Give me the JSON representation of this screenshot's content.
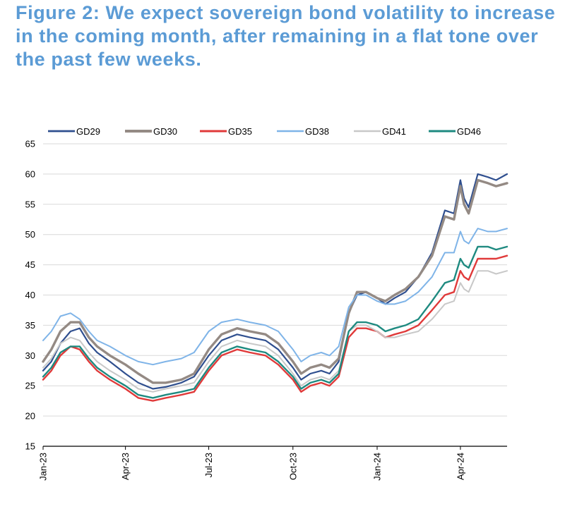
{
  "title": "Figure 2: We expect sovereign bond volatility to increase in the coming month, after remaining in a flat tone over the past few weeks.",
  "chart_data": {
    "type": "line",
    "title": "Figure 2: We expect sovereign bond volatility to increase in the coming month, after remaining in a flat tone over the past few weeks.",
    "x_range": [
      "2023-01-01",
      "2024-05-22"
    ],
    "y_range": [
      15,
      65
    ],
    "y_ticks": [
      15,
      20,
      25,
      30,
      35,
      40,
      45,
      50,
      55,
      60,
      65
    ],
    "x_ticks": [
      {
        "label": "Jan-23",
        "date": "2023-01-01"
      },
      {
        "label": "Apr-23",
        "date": "2023-04-01"
      },
      {
        "label": "Jul-23",
        "date": "2023-07-01"
      },
      {
        "label": "Oct-23",
        "date": "2023-10-01"
      },
      {
        "label": "Jan-24",
        "date": "2024-01-01"
      },
      {
        "label": "Apr-24",
        "date": "2024-04-01"
      }
    ],
    "grid": "horizontal",
    "legend_position": "top",
    "series": [
      {
        "name": "GD29",
        "color": "#2f4f8f",
        "width": 2.2,
        "points": [
          [
            "2023-01-01",
            27.5
          ],
          [
            "2023-01-10",
            29
          ],
          [
            "2023-01-20",
            32
          ],
          [
            "2023-01-31",
            34
          ],
          [
            "2023-02-10",
            34.5
          ],
          [
            "2023-02-20",
            32
          ],
          [
            "2023-03-01",
            30.5
          ],
          [
            "2023-03-15",
            29
          ],
          [
            "2023-04-01",
            27
          ],
          [
            "2023-04-15",
            25.5
          ],
          [
            "2023-05-01",
            24.5
          ],
          [
            "2023-05-15",
            24.8
          ],
          [
            "2023-06-01",
            25.5
          ],
          [
            "2023-06-15",
            26.5
          ],
          [
            "2023-07-01",
            30
          ],
          [
            "2023-07-15",
            32.5
          ],
          [
            "2023-08-01",
            33.5
          ],
          [
            "2023-08-15",
            33
          ],
          [
            "2023-09-01",
            32.5
          ],
          [
            "2023-09-15",
            31
          ],
          [
            "2023-10-01",
            28
          ],
          [
            "2023-10-10",
            26
          ],
          [
            "2023-10-20",
            27
          ],
          [
            "2023-11-01",
            27.5
          ],
          [
            "2023-11-10",
            27
          ],
          [
            "2023-11-20",
            29
          ],
          [
            "2023-12-01",
            37
          ],
          [
            "2023-12-10",
            40
          ],
          [
            "2023-12-20",
            40.5
          ],
          [
            "2024-01-01",
            39.5
          ],
          [
            "2024-01-10",
            38.5
          ],
          [
            "2024-01-20",
            39.5
          ],
          [
            "2024-02-01",
            40.5
          ],
          [
            "2024-02-15",
            43
          ],
          [
            "2024-03-01",
            47
          ],
          [
            "2024-03-15",
            54
          ],
          [
            "2024-03-25",
            53.5
          ],
          [
            "2024-04-01",
            59
          ],
          [
            "2024-04-05",
            56
          ],
          [
            "2024-04-10",
            54.5
          ],
          [
            "2024-04-20",
            60
          ],
          [
            "2024-05-01",
            59.5
          ],
          [
            "2024-05-10",
            59
          ],
          [
            "2024-05-22",
            60
          ]
        ]
      },
      {
        "name": "GD30",
        "color": "#948a84",
        "width": 3.4,
        "points": [
          [
            "2023-01-01",
            29
          ],
          [
            "2023-01-10",
            31
          ],
          [
            "2023-01-20",
            34
          ],
          [
            "2023-01-31",
            35.5
          ],
          [
            "2023-02-10",
            35.5
          ],
          [
            "2023-02-20",
            33
          ],
          [
            "2023-03-01",
            31.5
          ],
          [
            "2023-03-15",
            30
          ],
          [
            "2023-04-01",
            28.5
          ],
          [
            "2023-04-15",
            27
          ],
          [
            "2023-05-01",
            25.5
          ],
          [
            "2023-05-15",
            25.5
          ],
          [
            "2023-06-01",
            26
          ],
          [
            "2023-06-15",
            27
          ],
          [
            "2023-07-01",
            31
          ],
          [
            "2023-07-15",
            33.5
          ],
          [
            "2023-08-01",
            34.5
          ],
          [
            "2023-08-15",
            34
          ],
          [
            "2023-09-01",
            33.5
          ],
          [
            "2023-09-15",
            32
          ],
          [
            "2023-10-01",
            29
          ],
          [
            "2023-10-10",
            27
          ],
          [
            "2023-10-20",
            28
          ],
          [
            "2023-11-01",
            28.5
          ],
          [
            "2023-11-10",
            28
          ],
          [
            "2023-11-20",
            29.5
          ],
          [
            "2023-12-01",
            37
          ],
          [
            "2023-12-10",
            40.5
          ],
          [
            "2023-12-20",
            40.5
          ],
          [
            "2024-01-01",
            39.5
          ],
          [
            "2024-01-10",
            39
          ],
          [
            "2024-01-20",
            40
          ],
          [
            "2024-02-01",
            41
          ],
          [
            "2024-02-15",
            43
          ],
          [
            "2024-03-01",
            46.5
          ],
          [
            "2024-03-15",
            53
          ],
          [
            "2024-03-25",
            52.5
          ],
          [
            "2024-04-01",
            58
          ],
          [
            "2024-04-05",
            55
          ],
          [
            "2024-04-10",
            53.5
          ],
          [
            "2024-04-20",
            59
          ],
          [
            "2024-05-01",
            58.5
          ],
          [
            "2024-05-10",
            58
          ],
          [
            "2024-05-22",
            58.5
          ]
        ]
      },
      {
        "name": "GD35",
        "color": "#e03a3a",
        "width": 2.4,
        "points": [
          [
            "2023-01-01",
            26
          ],
          [
            "2023-01-10",
            27.5
          ],
          [
            "2023-01-20",
            30
          ],
          [
            "2023-01-31",
            31.5
          ],
          [
            "2023-02-10",
            31
          ],
          [
            "2023-02-20",
            29
          ],
          [
            "2023-03-01",
            27.5
          ],
          [
            "2023-03-15",
            26
          ],
          [
            "2023-04-01",
            24.5
          ],
          [
            "2023-04-15",
            23
          ],
          [
            "2023-05-01",
            22.5
          ],
          [
            "2023-05-15",
            23
          ],
          [
            "2023-06-01",
            23.5
          ],
          [
            "2023-06-15",
            24
          ],
          [
            "2023-07-01",
            27.5
          ],
          [
            "2023-07-15",
            30
          ],
          [
            "2023-08-01",
            31
          ],
          [
            "2023-08-15",
            30.5
          ],
          [
            "2023-09-01",
            30
          ],
          [
            "2023-09-15",
            28.5
          ],
          [
            "2023-10-01",
            26
          ],
          [
            "2023-10-10",
            24
          ],
          [
            "2023-10-20",
            25
          ],
          [
            "2023-11-01",
            25.5
          ],
          [
            "2023-11-10",
            25
          ],
          [
            "2023-11-20",
            26.5
          ],
          [
            "2023-12-01",
            33
          ],
          [
            "2023-12-10",
            34.5
          ],
          [
            "2023-12-20",
            34.5
          ],
          [
            "2024-01-01",
            34
          ],
          [
            "2024-01-10",
            33
          ],
          [
            "2024-01-20",
            33.5
          ],
          [
            "2024-02-01",
            34
          ],
          [
            "2024-02-15",
            35
          ],
          [
            "2024-03-01",
            37.5
          ],
          [
            "2024-03-15",
            40
          ],
          [
            "2024-03-25",
            40.5
          ],
          [
            "2024-04-01",
            44
          ],
          [
            "2024-04-05",
            43
          ],
          [
            "2024-04-10",
            42.5
          ],
          [
            "2024-04-20",
            46
          ],
          [
            "2024-05-01",
            46
          ],
          [
            "2024-05-10",
            46
          ],
          [
            "2024-05-22",
            46.5
          ]
        ]
      },
      {
        "name": "GD38",
        "color": "#7fb4e8",
        "width": 2.0,
        "points": [
          [
            "2023-01-01",
            32.5
          ],
          [
            "2023-01-10",
            34
          ],
          [
            "2023-01-20",
            36.5
          ],
          [
            "2023-01-31",
            37
          ],
          [
            "2023-02-10",
            36
          ],
          [
            "2023-02-20",
            34
          ],
          [
            "2023-03-01",
            32.5
          ],
          [
            "2023-03-15",
            31.5
          ],
          [
            "2023-04-01",
            30
          ],
          [
            "2023-04-15",
            29
          ],
          [
            "2023-05-01",
            28.5
          ],
          [
            "2023-05-15",
            29
          ],
          [
            "2023-06-01",
            29.5
          ],
          [
            "2023-06-15",
            30.5
          ],
          [
            "2023-07-01",
            34
          ],
          [
            "2023-07-15",
            35.5
          ],
          [
            "2023-08-01",
            36
          ],
          [
            "2023-08-15",
            35.5
          ],
          [
            "2023-09-01",
            35
          ],
          [
            "2023-09-15",
            34
          ],
          [
            "2023-10-01",
            31
          ],
          [
            "2023-10-10",
            29
          ],
          [
            "2023-10-20",
            30
          ],
          [
            "2023-11-01",
            30.5
          ],
          [
            "2023-11-10",
            30
          ],
          [
            "2023-11-20",
            31.5
          ],
          [
            "2023-12-01",
            38
          ],
          [
            "2023-12-10",
            40
          ],
          [
            "2023-12-20",
            40
          ],
          [
            "2024-01-01",
            39
          ],
          [
            "2024-01-10",
            38.5
          ],
          [
            "2024-01-20",
            38.5
          ],
          [
            "2024-02-01",
            39
          ],
          [
            "2024-02-15",
            40.5
          ],
          [
            "2024-03-01",
            43
          ],
          [
            "2024-03-15",
            47
          ],
          [
            "2024-03-25",
            47
          ],
          [
            "2024-04-01",
            50.5
          ],
          [
            "2024-04-05",
            49
          ],
          [
            "2024-04-10",
            48.5
          ],
          [
            "2024-04-20",
            51
          ],
          [
            "2024-05-01",
            50.5
          ],
          [
            "2024-05-10",
            50.5
          ],
          [
            "2024-05-22",
            51
          ]
        ]
      },
      {
        "name": "GD41",
        "color": "#c8c8c8",
        "width": 2.0,
        "points": [
          [
            "2023-01-01",
            28
          ],
          [
            "2023-01-10",
            29.5
          ],
          [
            "2023-01-20",
            32
          ],
          [
            "2023-01-31",
            33
          ],
          [
            "2023-02-10",
            32.5
          ],
          [
            "2023-02-20",
            30.5
          ],
          [
            "2023-03-01",
            29
          ],
          [
            "2023-03-15",
            27.5
          ],
          [
            "2023-04-01",
            26
          ],
          [
            "2023-04-15",
            24.5
          ],
          [
            "2023-05-01",
            24
          ],
          [
            "2023-05-15",
            24.5
          ],
          [
            "2023-06-01",
            25
          ],
          [
            "2023-06-15",
            25.5
          ],
          [
            "2023-07-01",
            29
          ],
          [
            "2023-07-15",
            31.5
          ],
          [
            "2023-08-01",
            32.5
          ],
          [
            "2023-08-15",
            32
          ],
          [
            "2023-09-01",
            31.5
          ],
          [
            "2023-09-15",
            30
          ],
          [
            "2023-10-01",
            27
          ],
          [
            "2023-10-10",
            25
          ],
          [
            "2023-10-20",
            26
          ],
          [
            "2023-11-01",
            26.5
          ],
          [
            "2023-11-10",
            26
          ],
          [
            "2023-11-20",
            27.5
          ],
          [
            "2023-12-01",
            34
          ],
          [
            "2023-12-10",
            35
          ],
          [
            "2023-12-20",
            35
          ],
          [
            "2024-01-01",
            34
          ],
          [
            "2024-01-10",
            33
          ],
          [
            "2024-01-20",
            33
          ],
          [
            "2024-02-01",
            33.5
          ],
          [
            "2024-02-15",
            34
          ],
          [
            "2024-03-01",
            36
          ],
          [
            "2024-03-15",
            38.5
          ],
          [
            "2024-03-25",
            39
          ],
          [
            "2024-04-01",
            42
          ],
          [
            "2024-04-05",
            41
          ],
          [
            "2024-04-10",
            40.5
          ],
          [
            "2024-04-20",
            44
          ],
          [
            "2024-05-01",
            44
          ],
          [
            "2024-05-10",
            43.5
          ],
          [
            "2024-05-22",
            44
          ]
        ]
      },
      {
        "name": "GD46",
        "color": "#1e8a80",
        "width": 2.4,
        "points": [
          [
            "2023-01-01",
            26.5
          ],
          [
            "2023-01-10",
            28
          ],
          [
            "2023-01-20",
            30.5
          ],
          [
            "2023-01-31",
            31.5
          ],
          [
            "2023-02-10",
            31.5
          ],
          [
            "2023-02-20",
            29.5
          ],
          [
            "2023-03-01",
            28
          ],
          [
            "2023-03-15",
            26.5
          ],
          [
            "2023-04-01",
            25
          ],
          [
            "2023-04-15",
            23.5
          ],
          [
            "2023-05-01",
            23
          ],
          [
            "2023-05-15",
            23.5
          ],
          [
            "2023-06-01",
            24
          ],
          [
            "2023-06-15",
            24.5
          ],
          [
            "2023-07-01",
            28
          ],
          [
            "2023-07-15",
            30.5
          ],
          [
            "2023-08-01",
            31.5
          ],
          [
            "2023-08-15",
            31
          ],
          [
            "2023-09-01",
            30.5
          ],
          [
            "2023-09-15",
            29
          ],
          [
            "2023-10-01",
            26.5
          ],
          [
            "2023-10-10",
            24.5
          ],
          [
            "2023-10-20",
            25.5
          ],
          [
            "2023-11-01",
            26
          ],
          [
            "2023-11-10",
            25.5
          ],
          [
            "2023-11-20",
            27
          ],
          [
            "2023-12-01",
            34
          ],
          [
            "2023-12-10",
            35.5
          ],
          [
            "2023-12-20",
            35.5
          ],
          [
            "2024-01-01",
            35
          ],
          [
            "2024-01-10",
            34
          ],
          [
            "2024-01-20",
            34.5
          ],
          [
            "2024-02-01",
            35
          ],
          [
            "2024-02-15",
            36
          ],
          [
            "2024-03-01",
            39
          ],
          [
            "2024-03-15",
            42
          ],
          [
            "2024-03-25",
            42.5
          ],
          [
            "2024-04-01",
            46
          ],
          [
            "2024-04-05",
            45
          ],
          [
            "2024-04-10",
            44.5
          ],
          [
            "2024-04-20",
            48
          ],
          [
            "2024-05-01",
            48
          ],
          [
            "2024-05-10",
            47.5
          ],
          [
            "2024-05-22",
            48
          ]
        ]
      }
    ]
  }
}
